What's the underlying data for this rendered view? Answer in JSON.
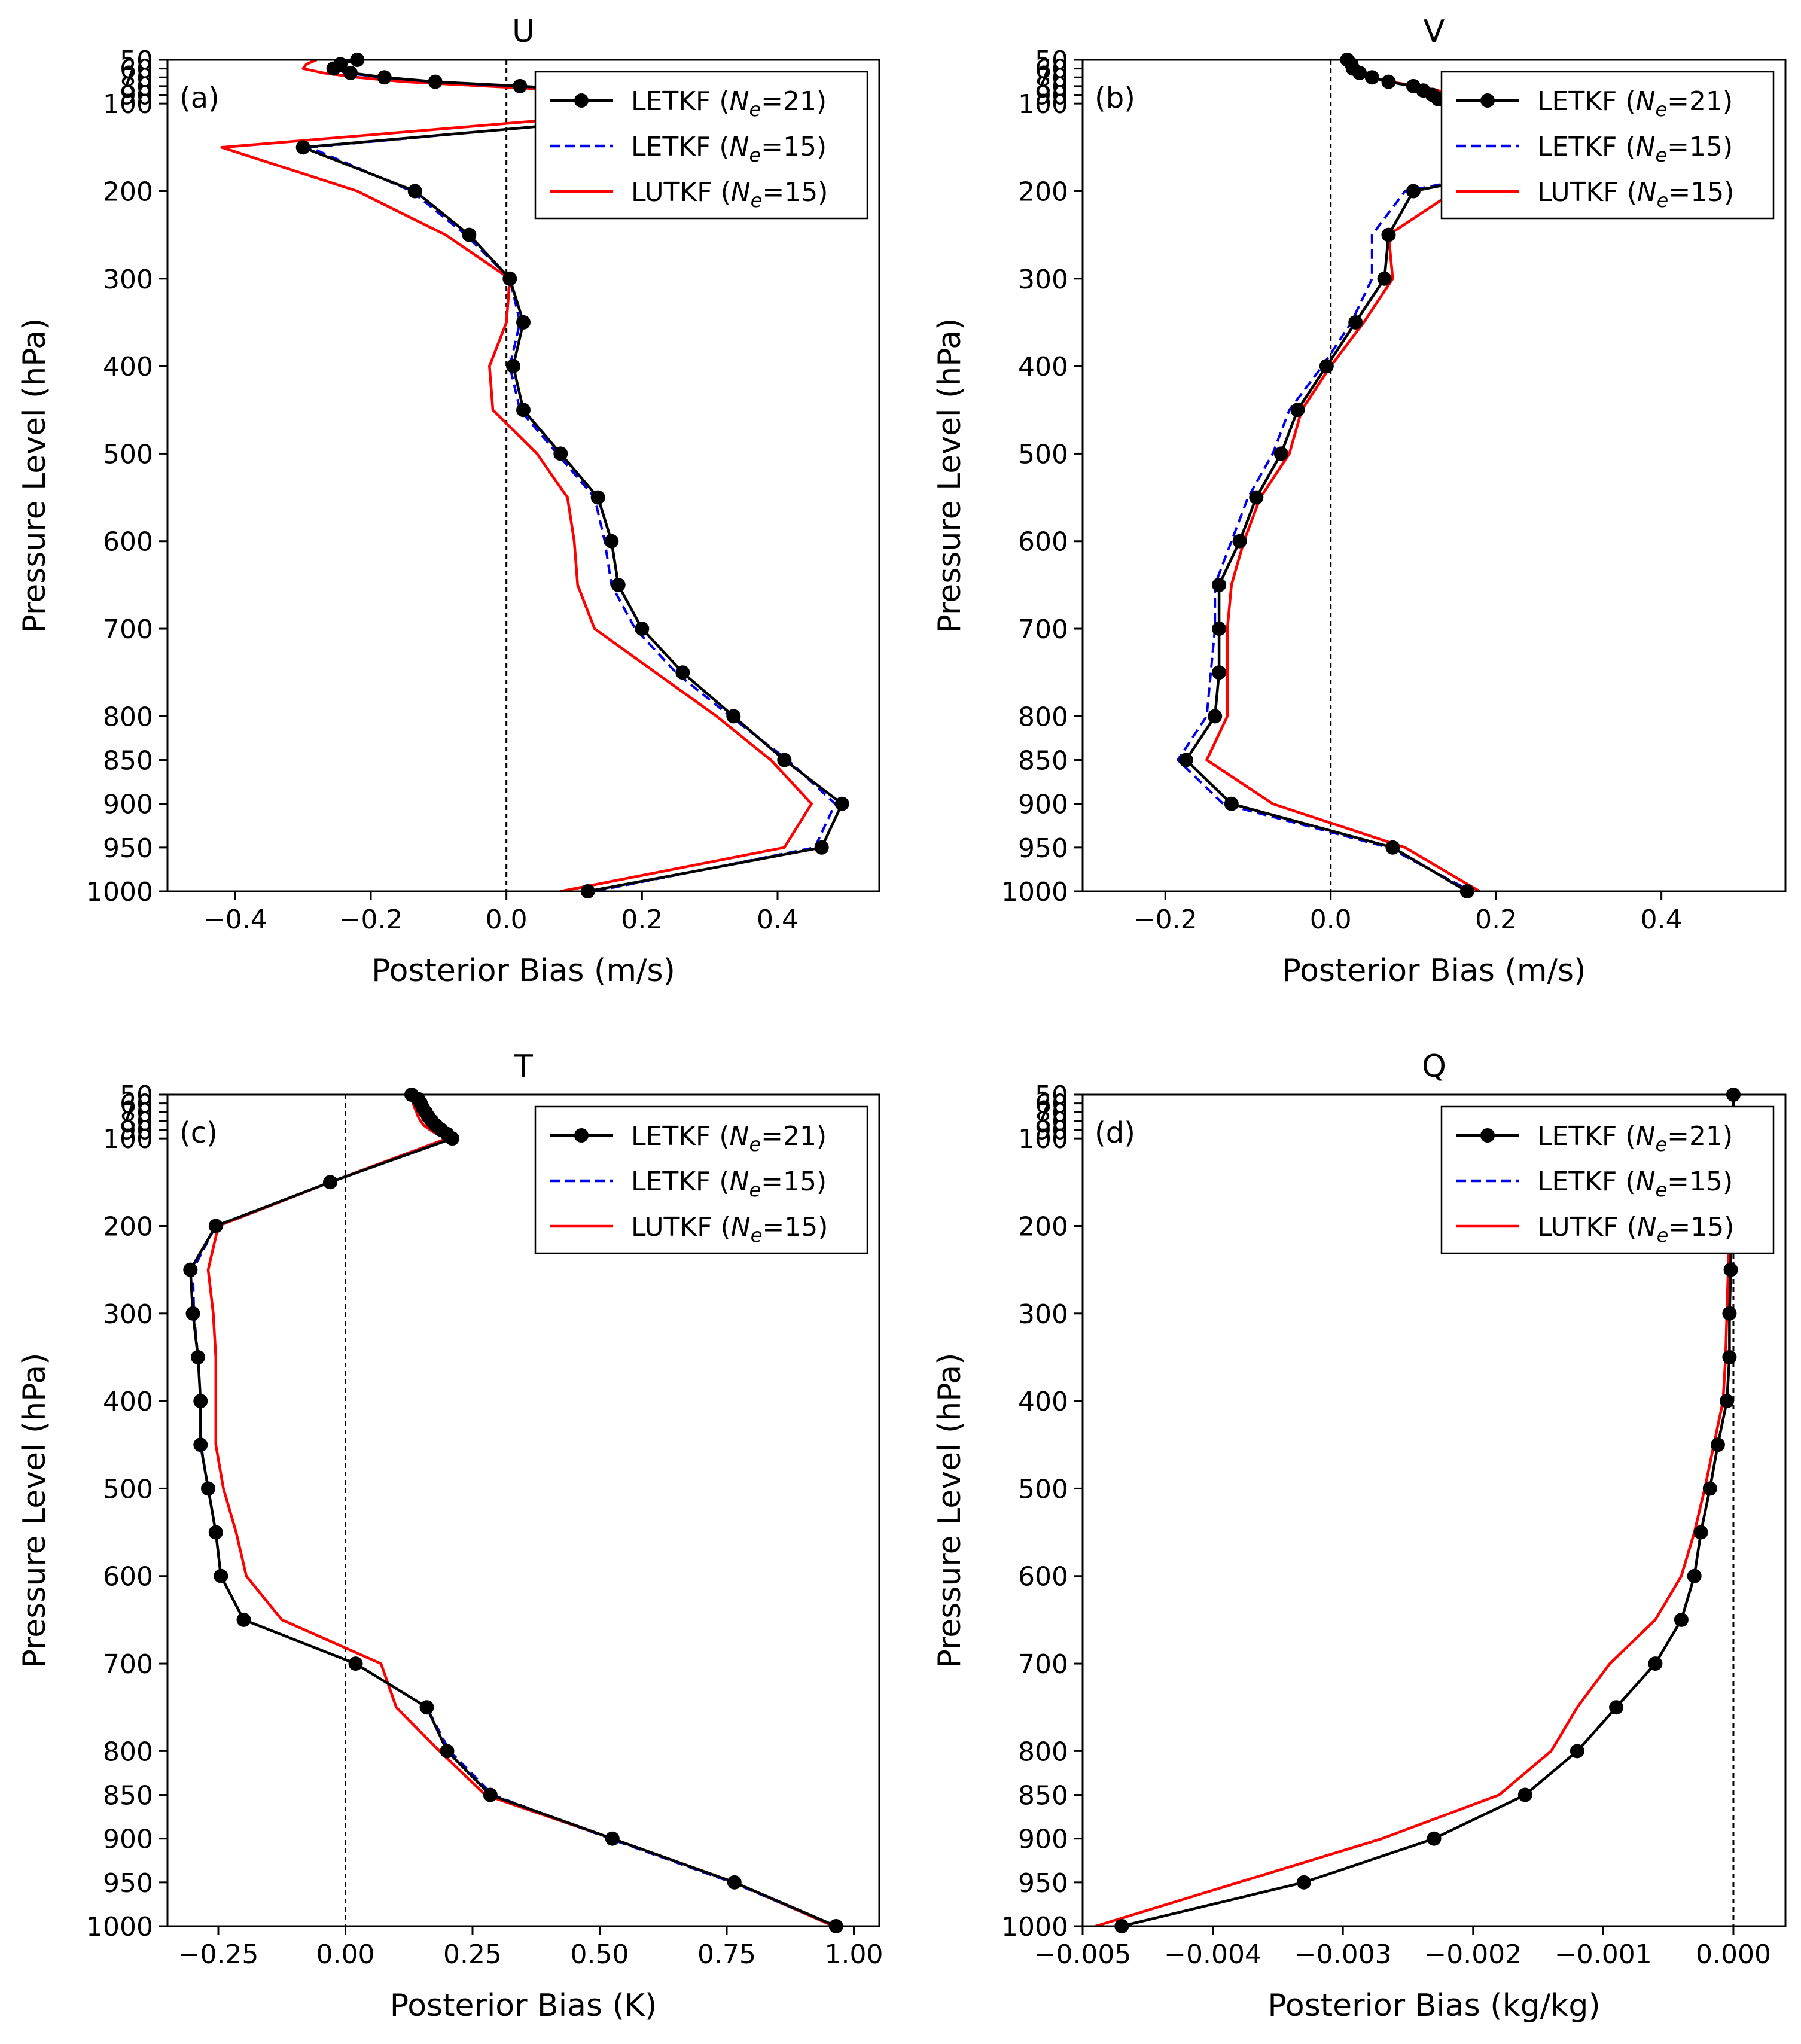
{
  "figure": {
    "panel_order": [
      "a",
      "b",
      "c",
      "d"
    ]
  },
  "chart_data": [
    {
      "id": "a",
      "type": "line",
      "title": "U",
      "panel_label": "(a)",
      "xlabel": "Posterior Bias (m/s)",
      "ylabel": "Pressure Level (hPa)",
      "xlim": [
        -0.5,
        0.55
      ],
      "xticks": [
        -0.4,
        -0.2,
        0.0,
        0.2,
        0.4
      ],
      "xtick_labels": [
        "−0.4",
        "−0.2",
        "0.0",
        "0.2",
        "0.4"
      ],
      "yticks": [
        50,
        60,
        70,
        80,
        90,
        100,
        200,
        300,
        400,
        500,
        600,
        700,
        800,
        850,
        900,
        950,
        1000
      ],
      "zero_line_x": 0.0,
      "levels": [
        50,
        55,
        60,
        65,
        70,
        75,
        80,
        85,
        90,
        95,
        100,
        150,
        200,
        250,
        300,
        350,
        400,
        450,
        500,
        550,
        600,
        650,
        700,
        750,
        800,
        850,
        900,
        950,
        1000
      ],
      "legend": {
        "placement": "upper-right"
      },
      "series": [
        {
          "name": "LETKF",
          "ne_label": "21",
          "color": "#000000",
          "dash": "solid",
          "marker": "circle",
          "values": [
            -0.22,
            -0.245,
            -0.255,
            -0.23,
            -0.18,
            -0.105,
            0.02,
            0.14,
            0.24,
            0.34,
            0.425,
            -0.3,
            -0.135,
            -0.055,
            0.005,
            0.025,
            0.01,
            0.025,
            0.08,
            0.135,
            0.155,
            0.165,
            0.2,
            0.26,
            0.335,
            0.41,
            0.495,
            0.465,
            0.12
          ]
        },
        {
          "name": "LETKF",
          "ne_label": "15",
          "color": "#0000ee",
          "dash": "dashed",
          "marker": "none",
          "values": [
            -0.225,
            -0.255,
            -0.265,
            -0.235,
            -0.185,
            -0.11,
            0.01,
            0.13,
            0.23,
            0.33,
            0.41,
            -0.29,
            -0.14,
            -0.06,
            0.005,
            0.02,
            0.005,
            0.02,
            0.075,
            0.13,
            0.145,
            0.155,
            0.19,
            0.25,
            0.33,
            0.415,
            0.485,
            0.455,
            0.13
          ]
        },
        {
          "name": "LUTKF",
          "ne_label": "15",
          "color": "#ff0000",
          "dash": "solid",
          "marker": "none",
          "values": [
            -0.28,
            -0.295,
            -0.3,
            -0.27,
            -0.22,
            -0.15,
            -0.03,
            0.09,
            0.2,
            0.3,
            0.35,
            -0.42,
            -0.22,
            -0.09,
            0.005,
            0.0,
            -0.025,
            -0.02,
            0.045,
            0.09,
            0.1,
            0.105,
            0.13,
            0.22,
            0.31,
            0.39,
            0.45,
            0.41,
            0.08
          ]
        }
      ]
    },
    {
      "id": "b",
      "type": "line",
      "title": "V",
      "panel_label": "(b)",
      "xlabel": "Posterior Bias (m/s)",
      "ylabel": "Pressure Level (hPa)",
      "xlim": [
        -0.3,
        0.55
      ],
      "xticks": [
        -0.2,
        0.0,
        0.2,
        0.4
      ],
      "xtick_labels": [
        "−0.2",
        "0.0",
        "0.2",
        "0.4"
      ],
      "yticks": [
        50,
        60,
        70,
        80,
        90,
        100,
        200,
        300,
        400,
        500,
        600,
        700,
        800,
        850,
        900,
        950,
        1000
      ],
      "zero_line_x": 0.0,
      "levels": [
        50,
        55,
        60,
        65,
        70,
        75,
        80,
        85,
        90,
        95,
        100,
        150,
        200,
        250,
        300,
        350,
        400,
        450,
        500,
        550,
        600,
        650,
        700,
        750,
        800,
        850,
        900,
        950,
        1000
      ],
      "legend": {
        "placement": "upper-right"
      },
      "series": [
        {
          "name": "LETKF",
          "ne_label": "21",
          "color": "#000000",
          "dash": "solid",
          "marker": "circle",
          "values": [
            0.02,
            0.025,
            0.027,
            0.035,
            0.05,
            0.07,
            0.1,
            0.112,
            0.123,
            0.13,
            0.145,
            0.37,
            0.1,
            0.07,
            0.065,
            0.03,
            -0.005,
            -0.04,
            -0.06,
            -0.09,
            -0.11,
            -0.135,
            -0.135,
            -0.135,
            -0.14,
            -0.175,
            -0.12,
            0.075,
            0.165
          ]
        },
        {
          "name": "LETKF",
          "ne_label": "15",
          "color": "#0000ee",
          "dash": "dashed",
          "marker": "none",
          "values": [
            0.018,
            0.024,
            0.026,
            0.034,
            0.048,
            0.068,
            0.098,
            0.11,
            0.12,
            0.128,
            0.138,
            0.37,
            0.09,
            0.05,
            0.05,
            0.025,
            -0.01,
            -0.05,
            -0.07,
            -0.1,
            -0.12,
            -0.14,
            -0.14,
            -0.145,
            -0.15,
            -0.185,
            -0.13,
            0.07,
            0.17
          ]
        },
        {
          "name": "LUTKF",
          "ne_label": "15",
          "color": "#ff0000",
          "dash": "solid",
          "marker": "none",
          "values": [
            0.02,
            0.025,
            0.028,
            0.036,
            0.05,
            0.072,
            0.104,
            0.13,
            0.145,
            0.16,
            0.185,
            0.39,
            0.15,
            0.07,
            0.075,
            0.04,
            0.0,
            -0.035,
            -0.05,
            -0.085,
            -0.105,
            -0.12,
            -0.125,
            -0.125,
            -0.125,
            -0.15,
            -0.07,
            0.09,
            0.18
          ]
        }
      ]
    },
    {
      "id": "c",
      "type": "line",
      "title": "T",
      "panel_label": "(c)",
      "xlabel": "Posterior Bias (K)",
      "ylabel": "Pressure Level (hPa)",
      "xlim": [
        -0.35,
        1.05
      ],
      "xticks": [
        -0.25,
        0.0,
        0.25,
        0.5,
        0.75,
        1.0
      ],
      "xtick_labels": [
        "−0.25",
        "0.00",
        "0.25",
        "0.50",
        "0.75",
        "1.00"
      ],
      "yticks": [
        50,
        60,
        70,
        80,
        90,
        100,
        200,
        300,
        400,
        500,
        600,
        700,
        800,
        850,
        900,
        950,
        1000
      ],
      "zero_line_x": 0.0,
      "levels": [
        50,
        55,
        60,
        65,
        70,
        75,
        80,
        85,
        90,
        95,
        100,
        150,
        200,
        250,
        300,
        350,
        400,
        450,
        500,
        550,
        600,
        650,
        700,
        750,
        800,
        850,
        900,
        950,
        1000
      ],
      "legend": {
        "placement": "upper-right"
      },
      "series": [
        {
          "name": "LETKF",
          "ne_label": "21",
          "color": "#000000",
          "dash": "solid",
          "marker": "circle",
          "values": [
            0.13,
            0.143,
            0.148,
            0.152,
            0.158,
            0.163,
            0.17,
            0.178,
            0.188,
            0.2,
            0.21,
            -0.03,
            -0.255,
            -0.305,
            -0.3,
            -0.29,
            -0.285,
            -0.285,
            -0.27,
            -0.255,
            -0.245,
            -0.2,
            0.02,
            0.16,
            0.2,
            0.285,
            0.525,
            0.765,
            0.965
          ]
        },
        {
          "name": "LETKF",
          "ne_label": "15",
          "color": "#0000ee",
          "dash": "dashed",
          "marker": "none",
          "values": [
            0.128,
            0.141,
            0.146,
            0.15,
            0.156,
            0.161,
            0.168,
            0.176,
            0.186,
            0.198,
            0.208,
            -0.03,
            -0.255,
            -0.3,
            -0.298,
            -0.29,
            -0.285,
            -0.284,
            -0.27,
            -0.255,
            -0.245,
            -0.2,
            0.02,
            0.16,
            0.205,
            0.29,
            0.52,
            0.76,
            0.965
          ]
        },
        {
          "name": "LUTKF",
          "ne_label": "15",
          "color": "#ff0000",
          "dash": "solid",
          "marker": "none",
          "values": [
            0.12,
            0.13,
            0.133,
            0.136,
            0.14,
            0.143,
            0.148,
            0.154,
            0.166,
            0.18,
            0.2,
            -0.03,
            -0.25,
            -0.27,
            -0.26,
            -0.255,
            -0.255,
            -0.255,
            -0.24,
            -0.215,
            -0.195,
            -0.125,
            0.07,
            0.1,
            0.185,
            0.275,
            0.525,
            0.765,
            0.96
          ]
        }
      ]
    },
    {
      "id": "d",
      "type": "line",
      "title": "Q",
      "panel_label": "(d)",
      "xlabel": "Posterior Bias (kg/kg)",
      "ylabel": "Pressure Level (hPa)",
      "xlim": [
        -0.005,
        0.0004
      ],
      "xticks": [
        -0.005,
        -0.004,
        -0.003,
        -0.002,
        -0.001,
        0.0
      ],
      "xtick_labels": [
        "−0.005",
        "−0.004",
        "−0.003",
        "−0.002",
        "−0.001",
        "0.000"
      ],
      "yticks": [
        50,
        60,
        70,
        80,
        90,
        100,
        200,
        300,
        400,
        500,
        600,
        700,
        800,
        850,
        900,
        950,
        1000
      ],
      "zero_line_x": 0.0,
      "levels": [
        50,
        80,
        85,
        90,
        95,
        100,
        150,
        200,
        250,
        300,
        350,
        400,
        450,
        500,
        550,
        600,
        650,
        700,
        750,
        800,
        850,
        900,
        950,
        1000
      ],
      "legend": {
        "placement": "upper-right"
      },
      "series": [
        {
          "name": "LETKF",
          "ne_label": "21",
          "color": "#000000",
          "dash": "solid",
          "marker": "circle",
          "values": [
            0.0,
            0.0,
            0.0,
            0.0,
            -1e-05,
            -1e-05,
            -1e-05,
            -2e-05,
            -2e-05,
            -3e-05,
            -3e-05,
            -5e-05,
            -0.00012,
            -0.00018,
            -0.00025,
            -0.0003,
            -0.0004,
            -0.0006,
            -0.0009,
            -0.0012,
            -0.0016,
            -0.0023,
            -0.0033,
            -0.0047
          ]
        },
        {
          "name": "LETKF",
          "ne_label": "15",
          "color": "#0000ee",
          "dash": "dashed",
          "marker": "none",
          "values": [
            0.0,
            0.0,
            0.0,
            0.0,
            -1e-05,
            -1e-05,
            -1e-05,
            -2e-05,
            -2e-05,
            -3e-05,
            -3e-05,
            -5e-05,
            -0.00012,
            -0.00018,
            -0.00025,
            -0.0003,
            -0.0004,
            -0.0006,
            -0.0009,
            -0.0012,
            -0.0016,
            -0.0023,
            -0.0033,
            -0.0047
          ]
        },
        {
          "name": "LUTKF",
          "ne_label": "15",
          "color": "#ff0000",
          "dash": "solid",
          "marker": "none",
          "values": [
            0.0,
            0.0,
            0.0,
            0.0,
            -1e-05,
            -1e-05,
            -2e-05,
            -3e-05,
            -4e-05,
            -5e-05,
            -6e-05,
            -8e-05,
            -0.00015,
            -0.00022,
            -0.0003,
            -0.0004,
            -0.0006,
            -0.00095,
            -0.0012,
            -0.0014,
            -0.0018,
            -0.0027,
            -0.0038,
            -0.0049
          ]
        }
      ]
    }
  ]
}
